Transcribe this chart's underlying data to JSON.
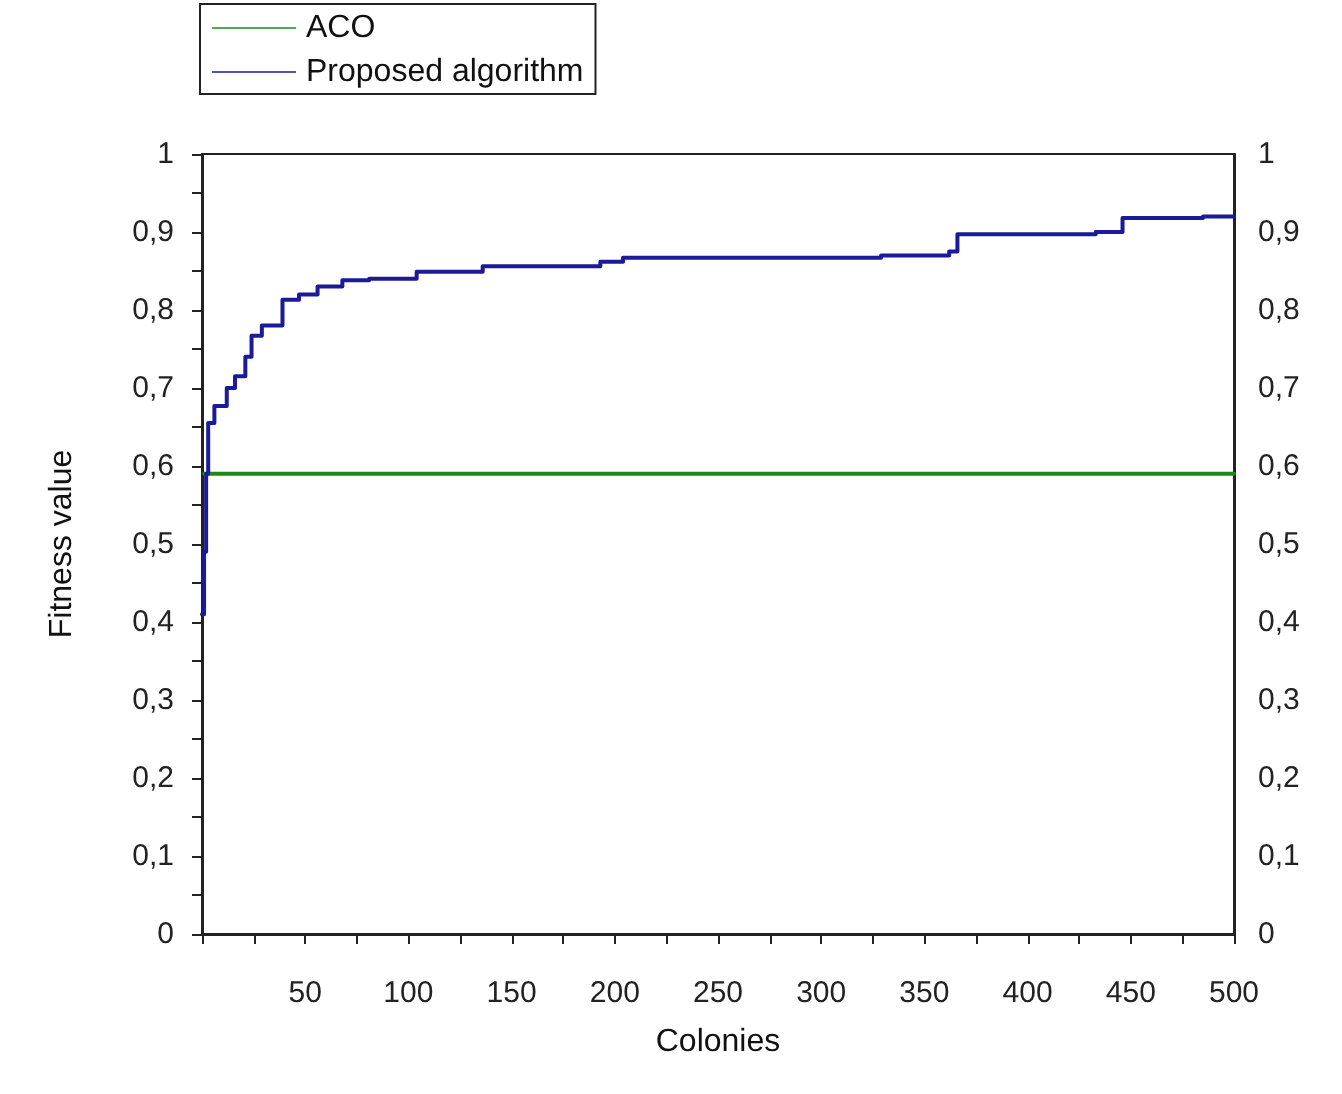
{
  "chart_data": {
    "type": "line",
    "xlabel": "Colonies",
    "ylabel": "Fitness value",
    "series": [
      {
        "name": "ACO",
        "color": "#1a8a1a",
        "x": [
          1,
          500
        ],
        "values": [
          0.59,
          0.59
        ]
      },
      {
        "name": "Proposed algorithm",
        "type": "step",
        "color": "#1a1a9a",
        "x": [
          0,
          1,
          2,
          3,
          6,
          12,
          16,
          21,
          24,
          29,
          39,
          47,
          56,
          68,
          81,
          104,
          136,
          193,
          204,
          329,
          362,
          366,
          370,
          433,
          446,
          485,
          500
        ],
        "values": [
          0.41,
          0.49,
          0.59,
          0.655,
          0.677,
          0.7,
          0.715,
          0.74,
          0.767,
          0.78,
          0.813,
          0.82,
          0.83,
          0.838,
          0.84,
          0.849,
          0.856,
          0.862,
          0.867,
          0.87,
          0.875,
          0.897,
          0.897,
          0.9,
          0.918,
          0.92,
          0.92
        ]
      }
    ],
    "xlim": [
      0,
      500
    ],
    "xticks": [
      {
        "value": 0,
        "label": null
      },
      {
        "value": 25,
        "label": null
      },
      50,
      {
        "value": 75,
        "label": null
      },
      100,
      {
        "value": 125,
        "label": null
      },
      150,
      {
        "value": 175,
        "label": null
      },
      200,
      {
        "value": 225,
        "label": null
      },
      250,
      {
        "value": 275,
        "label": null
      },
      300,
      {
        "value": 325,
        "label": null
      },
      350,
      {
        "value": 375,
        "label": null
      },
      400,
      {
        "value": 425,
        "label": null
      },
      450,
      {
        "value": 475,
        "label": null
      },
      500
    ],
    "ylim": [
      0,
      1
    ],
    "yticks": [
      0,
      {
        "value": 0.05,
        "label": null
      },
      {
        "value": 0.1,
        "label": "0,1"
      },
      {
        "value": 0.15,
        "label": null
      },
      {
        "value": 0.2,
        "label": "0,2"
      },
      {
        "value": 0.25,
        "label": null
      },
      {
        "value": 0.3,
        "label": "0,3"
      },
      {
        "value": 0.35,
        "label": null
      },
      {
        "value": 0.4,
        "label": "0,4"
      },
      {
        "value": 0.45,
        "label": null
      },
      {
        "value": 0.5,
        "label": "0,5"
      },
      {
        "value": 0.55,
        "label": null
      },
      {
        "value": 0.6,
        "label": "0,6"
      },
      {
        "value": 0.65,
        "label": null
      },
      {
        "value": 0.7,
        "label": "0,7"
      },
      {
        "value": 0.75,
        "label": null
      },
      {
        "value": 0.8,
        "label": "0,8"
      },
      {
        "value": 0.85,
        "label": null
      },
      {
        "value": 0.9,
        "label": "0,9"
      },
      {
        "value": 0.95,
        "label": null
      },
      1
    ],
    "y2lim": [
      0,
      1
    ],
    "y2ticks": [
      0,
      {
        "value": 0.1,
        "label": "0,1"
      },
      {
        "value": 0.2,
        "label": "0,2"
      },
      {
        "value": 0.3,
        "label": "0,3"
      },
      {
        "value": 0.4,
        "label": "0,4"
      },
      {
        "value": 0.5,
        "label": "0,5"
      },
      {
        "value": 0.6,
        "label": "0,6"
      },
      {
        "value": 0.7,
        "label": "0,7"
      },
      {
        "value": 0.8,
        "label": "0,8"
      },
      {
        "value": 0.9,
        "label": "0,9"
      },
      1
    ],
    "grid": false,
    "legend": "top left",
    "marker": "none",
    "line_style": "solid"
  }
}
